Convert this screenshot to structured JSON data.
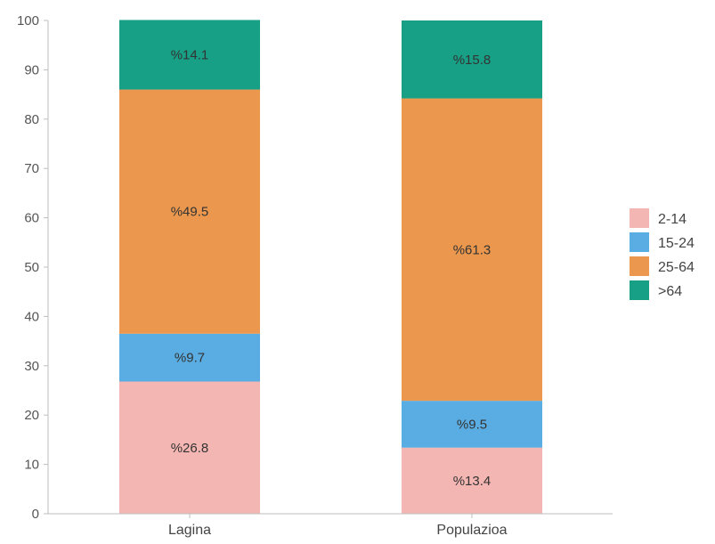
{
  "chart_data": {
    "type": "bar",
    "stacked": true,
    "categories": [
      "Lagina",
      "Populazioa"
    ],
    "series": [
      {
        "name": "2-14",
        "color": "#f4b6b2",
        "values": [
          26.8,
          13.4
        ],
        "labels": [
          "%26.8",
          "%13.4"
        ]
      },
      {
        "name": "15-24",
        "color": "#5aade2",
        "values": [
          9.7,
          9.5
        ],
        "labels": [
          "%9.7",
          "%9.5"
        ]
      },
      {
        "name": "25-64",
        "color": "#eb984e",
        "values": [
          49.5,
          61.3
        ],
        "labels": [
          "%49.5",
          "%61.3"
        ]
      },
      {
        "name": ">64",
        "color": "#17a085",
        "values": [
          14.1,
          15.8
        ],
        "labels": [
          "%14.1",
          "%15.8"
        ]
      }
    ],
    "ylim": [
      0,
      100
    ],
    "yticks": [
      0,
      10,
      20,
      30,
      40,
      50,
      60,
      70,
      80,
      90,
      100
    ],
    "title": "",
    "xlabel": "",
    "ylabel": "",
    "grid": false,
    "legend_position": "right"
  }
}
